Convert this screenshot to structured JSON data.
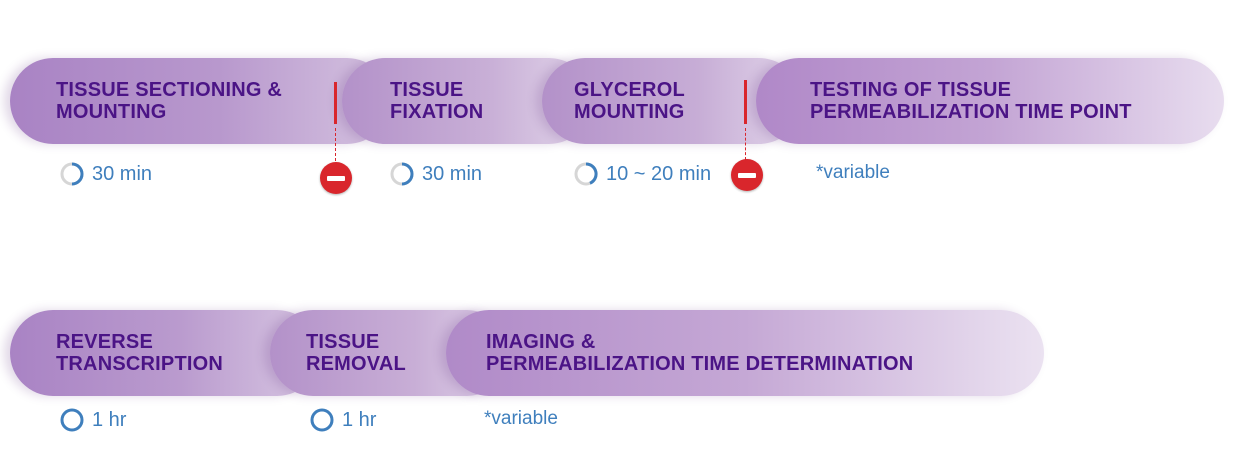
{
  "row1": {
    "steps": [
      {
        "label": "TISSUE SECTIONING &\nMOUNTING",
        "duration": "30 min",
        "clock": "partial-clock-icon"
      },
      {
        "label": "TISSUE\nFIXATION",
        "duration": "30 min",
        "clock": "partial-clock-icon"
      },
      {
        "label": "GLYCEROL\nMOUNTING",
        "duration": "10 ~ 20 min",
        "clock": "partial-clock-icon"
      },
      {
        "label": "TESTING OF TISSUE\nPERMEABILIZATION TIME POINT",
        "duration": "*variable"
      }
    ],
    "stop_points": [
      "stop-icon",
      "stop-icon"
    ]
  },
  "row2": {
    "steps": [
      {
        "label": "REVERSE\nTRANSCRIPTION",
        "duration": "1 hr",
        "clock": "full-clock-icon"
      },
      {
        "label": "TISSUE\nREMOVAL",
        "duration": "1 hr",
        "clock": "full-clock-icon"
      },
      {
        "label": "IMAGING &\nPERMEABILIZATION TIME DETERMINATION",
        "duration": "*variable"
      }
    ]
  },
  "colors": {
    "pill_start": "#b28fc8",
    "pill_end": "#ece3f0",
    "label_text": "#4b1486",
    "duration_text": "#3f7fbd",
    "stop": "#d9262c"
  }
}
